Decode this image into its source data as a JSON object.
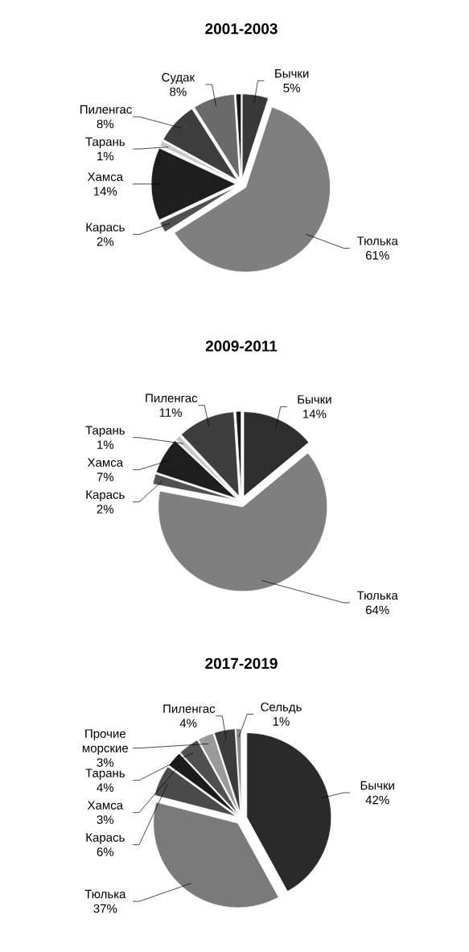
{
  "chart_data": [
    {
      "type": "pie",
      "title": "2001-2003",
      "categories": [
        "Бычки",
        "Тюлька",
        "Карась",
        "Хамса",
        "Тарань",
        "Пиленгас",
        "Судак",
        null
      ],
      "values": [
        5,
        61,
        2,
        14,
        1,
        8,
        8,
        1
      ],
      "value_labels": [
        "5%",
        "61%",
        "2%",
        "14%",
        "1%",
        "8%",
        "8%",
        null
      ],
      "colors": [
        "#383838",
        "#7f7f7f",
        "#505050",
        "#1e1e1e",
        "#c8c8c8",
        "#3e3e3e",
        "#6a6a6a",
        "#1a1a1a"
      ]
    },
    {
      "type": "pie",
      "title": "2009-2011",
      "categories": [
        "Бычки",
        "Тюлька",
        "Карась",
        "Хамса",
        "Тарань",
        "Пиленгас",
        null
      ],
      "values": [
        14,
        64,
        2,
        7,
        1,
        11,
        1
      ],
      "value_labels": [
        "14%",
        "64%",
        "2%",
        "7%",
        "1%",
        "11%",
        null
      ],
      "colors": [
        "#2e2e2e",
        "#7f7f7f",
        "#505050",
        "#1e1e1e",
        "#c8c8c8",
        "#3e3e3e",
        "#1a1a1a"
      ]
    },
    {
      "type": "pie",
      "title": "2017-2019",
      "categories": [
        "Бычки",
        "Тюлька",
        "Карась",
        "Хамса",
        "Тарань",
        "Прочие морские",
        "Пиленгас",
        "Сельдь"
      ],
      "values": [
        42,
        37,
        6,
        3,
        4,
        3,
        4,
        1
      ],
      "value_labels": [
        "42%",
        "37%",
        "6%",
        "3%",
        "4%",
        "3%",
        "4%",
        "1%"
      ],
      "colors": [
        "#2a2a2a",
        "#7a7a7a",
        "#4a4a4a",
        "#1c1c1c",
        "#505050",
        "#9a9a9a",
        "#3c3c3c",
        "#8a8a8a"
      ]
    }
  ]
}
